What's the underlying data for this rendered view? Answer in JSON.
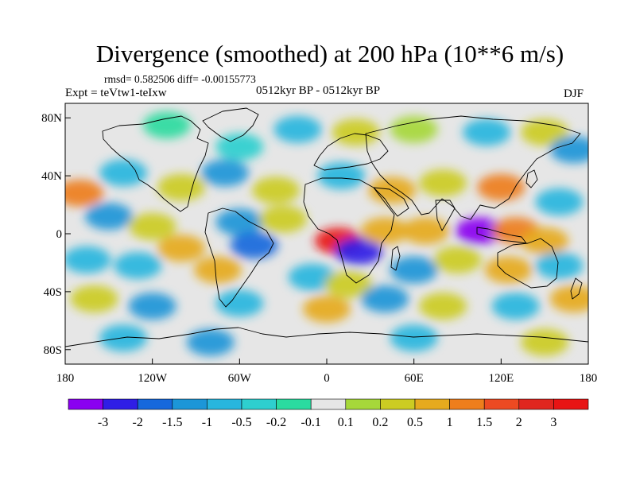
{
  "title": "Divergence (smoothed) at 200 hPa (10**6 m/s)",
  "stats": "rmsd= 0.582506 diff= -0.00155773",
  "experiment": "Expt = teVtw1-teIxw",
  "period": "0512kyr BP - 0512kyr BP",
  "season": "DJF",
  "lat_ticks": [
    "80N",
    "40N",
    "0",
    "40S",
    "80S"
  ],
  "lon_ticks": [
    "180",
    "120W",
    "60W",
    "0",
    "60E",
    "120E",
    "180"
  ],
  "colorbar": {
    "labels": [
      "-3",
      "-2",
      "-1.5",
      "-1",
      "-0.5",
      "-0.2",
      "-0.1",
      "0.1",
      "0.2",
      "0.5",
      "1",
      "1.5",
      "2",
      "3"
    ],
    "colors": [
      "#8a00f0",
      "#2f1ee6",
      "#1668dc",
      "#1c96d8",
      "#28b6de",
      "#2ecfcf",
      "#2adba0",
      "#e6e6e6",
      "#a6d83a",
      "#cccc22",
      "#e6aa1e",
      "#ee7e1c",
      "#ed4a22",
      "#e0261f",
      "#e81414"
    ]
  },
  "field": {
    "background": "#e6e6e6",
    "blobs": [
      {
        "lon": -110,
        "lat": 75,
        "level": 6
      },
      {
        "lon": -60,
        "lat": 60,
        "level": 5
      },
      {
        "lon": -20,
        "lat": 72,
        "level": 4
      },
      {
        "lon": 20,
        "lat": 70,
        "level": 9
      },
      {
        "lon": 60,
        "lat": 72,
        "level": 8
      },
      {
        "lon": 110,
        "lat": 70,
        "level": 4
      },
      {
        "lon": 150,
        "lat": 70,
        "level": 9
      },
      {
        "lon": 170,
        "lat": 58,
        "level": 3
      },
      {
        "lon": -170,
        "lat": 28,
        "level": 11
      },
      {
        "lon": -140,
        "lat": 42,
        "level": 4
      },
      {
        "lon": -100,
        "lat": 32,
        "level": 9
      },
      {
        "lon": -70,
        "lat": 42,
        "level": 3
      },
      {
        "lon": -35,
        "lat": 30,
        "level": 9
      },
      {
        "lon": 10,
        "lat": 40,
        "level": 4
      },
      {
        "lon": 45,
        "lat": 30,
        "level": 10
      },
      {
        "lon": 80,
        "lat": 35,
        "level": 9
      },
      {
        "lon": 120,
        "lat": 32,
        "level": 11
      },
      {
        "lon": 160,
        "lat": 22,
        "level": 4
      },
      {
        "lon": -150,
        "lat": 12,
        "level": 3
      },
      {
        "lon": -120,
        "lat": 5,
        "level": 9
      },
      {
        "lon": -60,
        "lat": 8,
        "level": 3
      },
      {
        "lon": -30,
        "lat": 10,
        "level": 9
      },
      {
        "lon": 8,
        "lat": -5,
        "level": 14
      },
      {
        "lon": 22,
        "lat": -12,
        "level": 1
      },
      {
        "lon": 40,
        "lat": 2,
        "level": 10
      },
      {
        "lon": 68,
        "lat": 2,
        "level": 10
      },
      {
        "lon": 105,
        "lat": 2,
        "level": 0
      },
      {
        "lon": 130,
        "lat": 2,
        "level": 11
      },
      {
        "lon": 150,
        "lat": -5,
        "level": 10
      },
      {
        "lon": -165,
        "lat": -18,
        "level": 4
      },
      {
        "lon": -130,
        "lat": -22,
        "level": 4
      },
      {
        "lon": -100,
        "lat": -10,
        "level": 10
      },
      {
        "lon": -75,
        "lat": -25,
        "level": 10
      },
      {
        "lon": -50,
        "lat": -8,
        "level": 2
      },
      {
        "lon": -10,
        "lat": -30,
        "level": 4
      },
      {
        "lon": 15,
        "lat": -35,
        "level": 9
      },
      {
        "lon": 60,
        "lat": -25,
        "level": 3
      },
      {
        "lon": 90,
        "lat": -18,
        "level": 9
      },
      {
        "lon": 125,
        "lat": -25,
        "level": 10
      },
      {
        "lon": 160,
        "lat": -22,
        "level": 4
      },
      {
        "lon": -160,
        "lat": -45,
        "level": 9
      },
      {
        "lon": -120,
        "lat": -50,
        "level": 3
      },
      {
        "lon": -60,
        "lat": -48,
        "level": 4
      },
      {
        "lon": 0,
        "lat": -52,
        "level": 10
      },
      {
        "lon": 40,
        "lat": -45,
        "level": 3
      },
      {
        "lon": 80,
        "lat": -50,
        "level": 9
      },
      {
        "lon": 130,
        "lat": -50,
        "level": 4
      },
      {
        "lon": 170,
        "lat": -45,
        "level": 10
      },
      {
        "lon": -140,
        "lat": -72,
        "level": 4
      },
      {
        "lon": -80,
        "lat": -75,
        "level": 3
      },
      {
        "lon": 60,
        "lat": -72,
        "level": 4
      },
      {
        "lon": 150,
        "lat": -75,
        "level": 9
      }
    ]
  }
}
